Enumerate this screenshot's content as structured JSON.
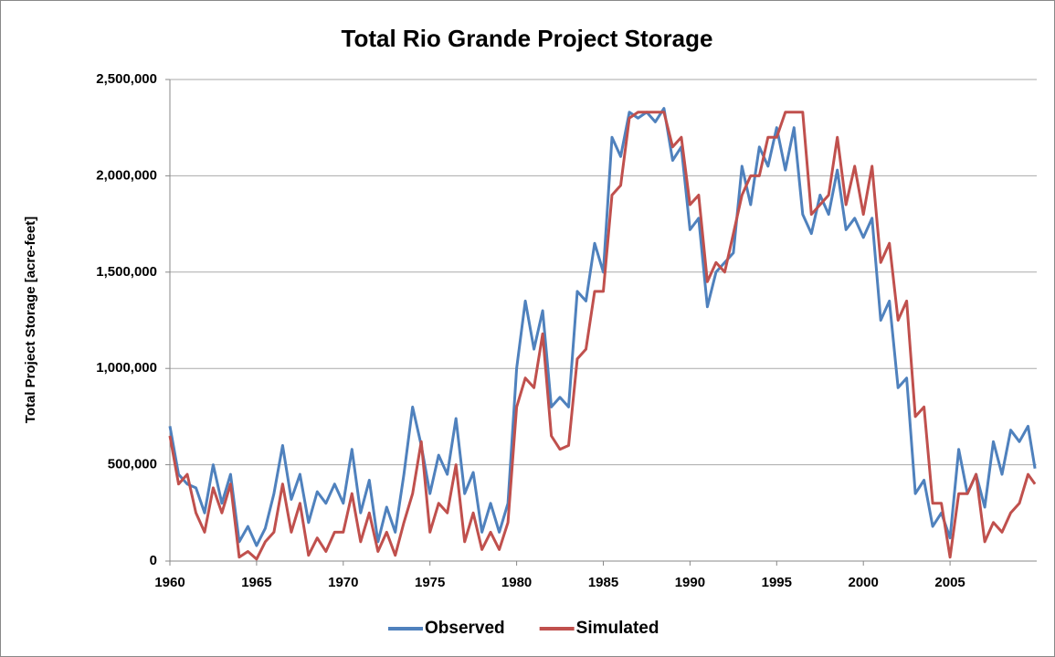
{
  "chart_data": {
    "type": "line",
    "title": "Total Rio Grande Project Storage",
    "y_label": "Total Project Storage [acre-feet]",
    "x": [
      1960,
      1960.5,
      1961,
      1961.5,
      1962,
      1962.5,
      1963,
      1963.5,
      1964,
      1964.5,
      1965,
      1965.5,
      1966,
      1966.5,
      1967,
      1967.5,
      1968,
      1968.5,
      1969,
      1969.5,
      1970,
      1970.5,
      1971,
      1971.5,
      1972,
      1972.5,
      1973,
      1973.5,
      1974,
      1974.5,
      1975,
      1975.5,
      1976,
      1976.5,
      1977,
      1977.5,
      1978,
      1978.5,
      1979,
      1979.5,
      1980,
      1980.5,
      1981,
      1981.5,
      1982,
      1982.5,
      1983,
      1983.5,
      1984,
      1984.5,
      1985,
      1985.5,
      1986,
      1986.5,
      1987,
      1987.5,
      1988,
      1988.5,
      1989,
      1989.5,
      1990,
      1990.5,
      1991,
      1991.5,
      1992,
      1992.5,
      1993,
      1993.5,
      1994,
      1994.5,
      1995,
      1995.5,
      1996,
      1996.5,
      1997,
      1997.5,
      1998,
      1998.5,
      1999,
      1999.5,
      2000,
      2000.5,
      2001,
      2001.5,
      2002,
      2002.5,
      2003,
      2003.5,
      2004,
      2004.5,
      2005,
      2005.5,
      2006,
      2006.5,
      2007,
      2007.5,
      2008,
      2008.5,
      2009,
      2009.5,
      2009.9
    ],
    "series": [
      {
        "name": "Observed",
        "color": "#4f81bd",
        "values": [
          700000,
          450000,
          400000,
          380000,
          250000,
          500000,
          300000,
          450000,
          100000,
          180000,
          80000,
          170000,
          350000,
          600000,
          320000,
          450000,
          200000,
          360000,
          300000,
          400000,
          300000,
          580000,
          250000,
          420000,
          100000,
          280000,
          150000,
          450000,
          800000,
          600000,
          350000,
          550000,
          450000,
          740000,
          350000,
          460000,
          150000,
          300000,
          150000,
          300000,
          1000000,
          1350000,
          1100000,
          1300000,
          800000,
          850000,
          800000,
          1400000,
          1350000,
          1650000,
          1500000,
          2200000,
          2100000,
          2330000,
          2300000,
          2330000,
          2280000,
          2350000,
          2080000,
          2150000,
          1720000,
          1780000,
          1320000,
          1500000,
          1550000,
          1600000,
          2050000,
          1850000,
          2150000,
          2050000,
          2250000,
          2030000,
          2250000,
          1800000,
          1700000,
          1900000,
          1800000,
          2030000,
          1720000,
          1780000,
          1680000,
          1780000,
          1250000,
          1350000,
          900000,
          950000,
          350000,
          420000,
          180000,
          250000,
          120000,
          580000,
          350000,
          450000,
          280000,
          620000,
          450000,
          680000,
          620000,
          700000,
          480000
        ]
      },
      {
        "name": "Simulated",
        "color": "#c0504d",
        "values": [
          650000,
          400000,
          450000,
          250000,
          150000,
          380000,
          250000,
          400000,
          20000,
          50000,
          10000,
          100000,
          150000,
          400000,
          150000,
          300000,
          30000,
          120000,
          50000,
          150000,
          150000,
          350000,
          100000,
          250000,
          50000,
          150000,
          30000,
          200000,
          350000,
          620000,
          150000,
          300000,
          250000,
          500000,
          100000,
          250000,
          60000,
          150000,
          60000,
          200000,
          800000,
          950000,
          900000,
          1180000,
          650000,
          580000,
          600000,
          1050000,
          1100000,
          1400000,
          1400000,
          1900000,
          1950000,
          2300000,
          2330000,
          2330000,
          2330000,
          2330000,
          2150000,
          2200000,
          1850000,
          1900000,
          1450000,
          1550000,
          1500000,
          1700000,
          1900000,
          2000000,
          2000000,
          2200000,
          2200000,
          2330000,
          2330000,
          2330000,
          1800000,
          1850000,
          1900000,
          2200000,
          1850000,
          2050000,
          1800000,
          2050000,
          1550000,
          1650000,
          1250000,
          1350000,
          750000,
          800000,
          300000,
          300000,
          20000,
          350000,
          350000,
          450000,
          100000,
          200000,
          150000,
          250000,
          300000,
          450000,
          400000
        ]
      }
    ],
    "xlim": [
      1960,
      2010
    ],
    "xticks": [
      1960,
      1965,
      1970,
      1975,
      1980,
      1985,
      1990,
      1995,
      2000,
      2005
    ],
    "ylim": [
      0,
      2500000
    ],
    "yticks": [
      0,
      {
        "value": 500000,
        "label": "500,000"
      },
      {
        "value": 1000000,
        "label": "1,000,000"
      },
      {
        "value": 1500000,
        "label": "1,500,000"
      },
      {
        "value": 2000000,
        "label": "2,000,000"
      },
      {
        "value": 2500000,
        "label": "2,500,000"
      }
    ],
    "grid": true,
    "legend": "bottom"
  }
}
